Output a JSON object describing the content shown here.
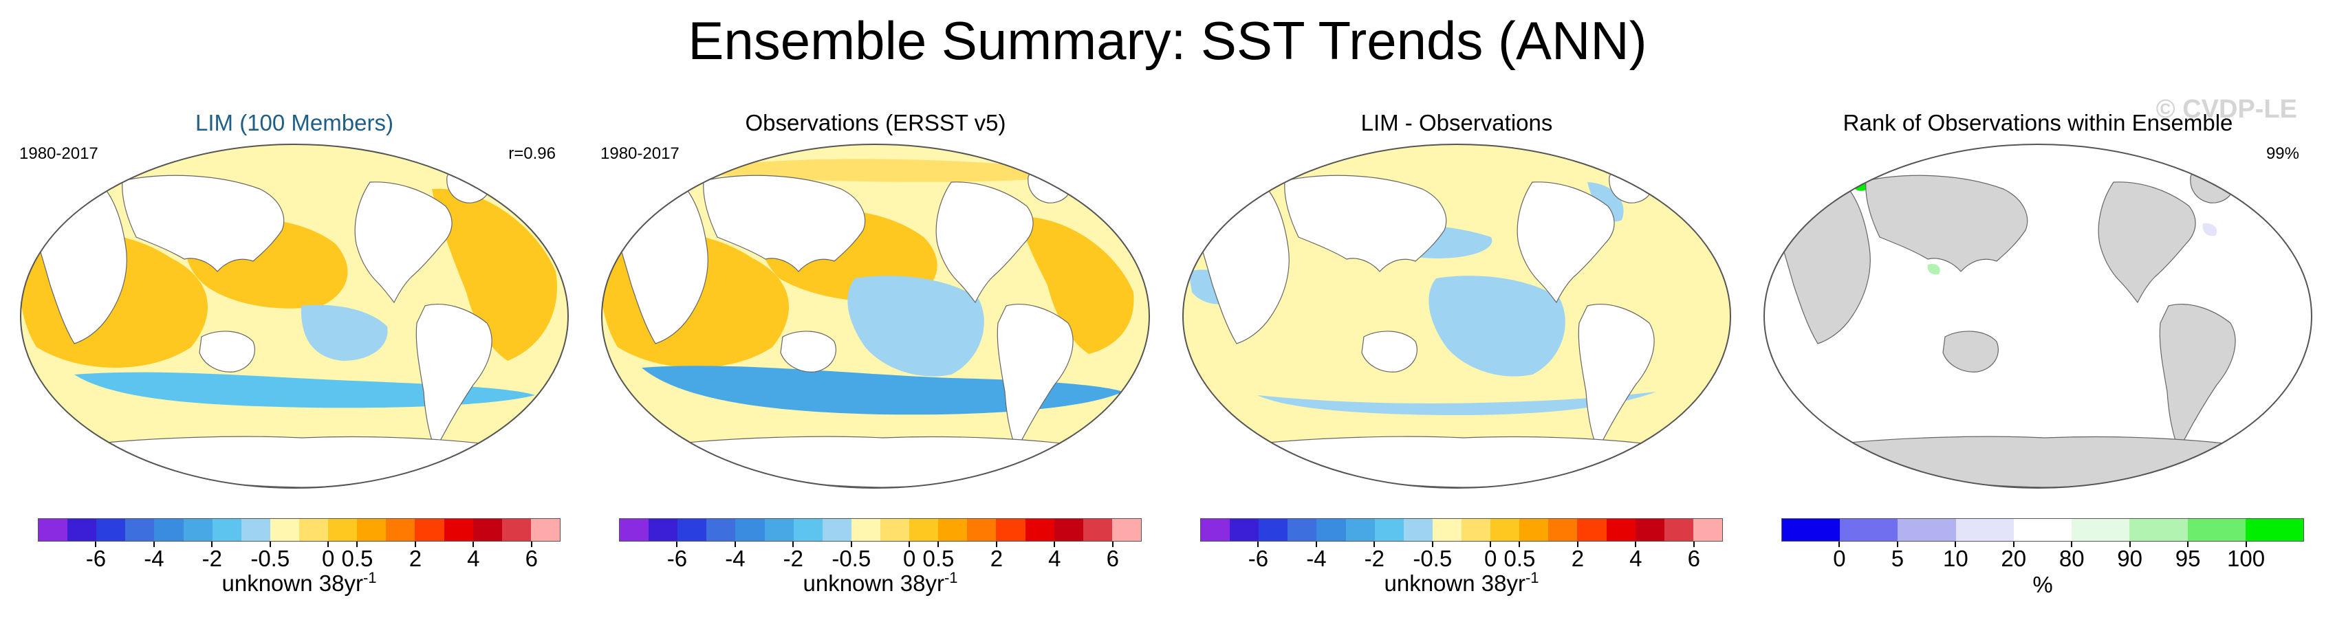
{
  "title": "Ensemble Summary: SST Trends (ANN)",
  "watermark": "© CVDP-LE",
  "panels": [
    {
      "title": "LIM (100 Members)",
      "title_color": "#1f5e86",
      "left_label": "1980-2017",
      "right_label": "r=0.96",
      "kind": "trend_lim"
    },
    {
      "title": "Observations (ERSST v5)",
      "title_color": "#000000",
      "left_label": "1980-2017",
      "right_label": "",
      "kind": "trend_obs"
    },
    {
      "title": "LIM - Observations",
      "title_color": "#000000",
      "left_label": "",
      "right_label": "",
      "kind": "diff"
    },
    {
      "title": "Rank of Observations within Ensemble",
      "title_color": "#000000",
      "left_label": "",
      "right_label": "99%",
      "kind": "rank"
    }
  ],
  "trend_colorbar": {
    "colors": [
      "#8a2be2",
      "#3b1fd6",
      "#2a3fe0",
      "#3d6fde",
      "#3a8ce0",
      "#48a8e6",
      "#5dc4ef",
      "#9ed4f1",
      "#fff6b0",
      "#ffe06a",
      "#ffc820",
      "#ffa500",
      "#ff7a00",
      "#ff3f00",
      "#e60000",
      "#c50010",
      "#dc3b46",
      "#ffaaaa"
    ],
    "ticks": [
      {
        "label": "-6",
        "pos": 2
      },
      {
        "label": "-4",
        "pos": 4
      },
      {
        "label": "-2",
        "pos": 6
      },
      {
        "label": "-0.5",
        "pos": 8
      },
      {
        "label": "0",
        "pos": 10
      },
      {
        "label": "0.5",
        "pos": 11
      },
      {
        "label": "2",
        "pos": 13
      },
      {
        "label": "4",
        "pos": 15
      },
      {
        "label": "6",
        "pos": 17
      }
    ],
    "units_text": "unknown 38yr",
    "units_exp": "-1"
  },
  "rank_colorbar": {
    "colors": [
      "#0a00f0",
      "#6f6ff0",
      "#b2b2f0",
      "#e3e3fa",
      "#ffffff",
      "#e4fae4",
      "#b2f3b2",
      "#6cee6c",
      "#00ee00"
    ],
    "ticks": [
      {
        "label": "0",
        "pos": 1
      },
      {
        "label": "5",
        "pos": 2
      },
      {
        "label": "10",
        "pos": 3
      },
      {
        "label": "20",
        "pos": 4
      },
      {
        "label": "80",
        "pos": 5
      },
      {
        "label": "90",
        "pos": 6
      },
      {
        "label": "95",
        "pos": 7
      },
      {
        "label": "100",
        "pos": 8
      }
    ],
    "units_text": "%"
  }
}
